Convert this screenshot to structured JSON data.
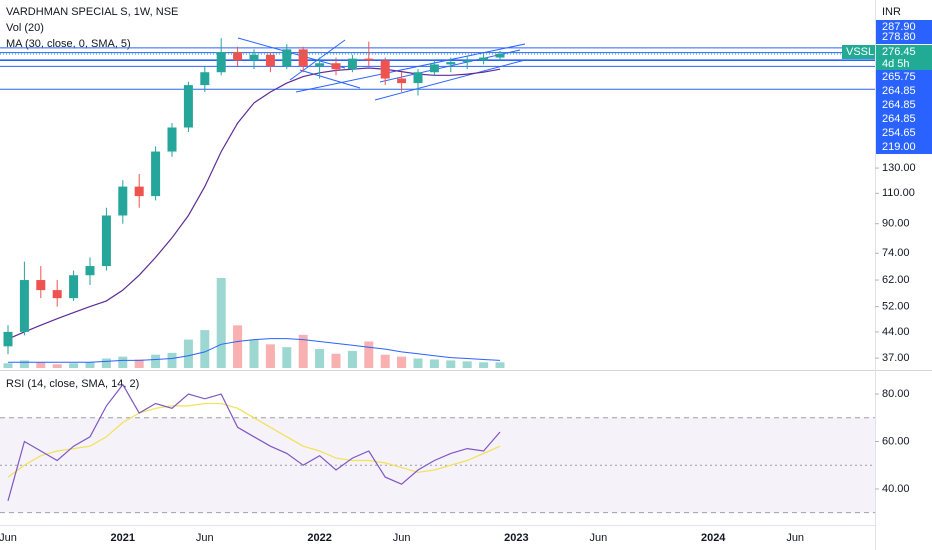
{
  "chart_data": [
    {
      "type": "candlestick",
      "title": "VARDHMAN SPECIAL S, 1W, NSE",
      "volume_title": "Vol (20)",
      "ma_title": "MA (30, close, 0, SMA, 5)",
      "currency": "INR",
      "log_scale": true,
      "ylim": [
        34.2,
        395
      ],
      "yticks": [
        {
          "value": 130,
          "label": "130.00"
        },
        {
          "value": 110,
          "label": "110.00"
        },
        {
          "value": 90,
          "label": "90.00"
        },
        {
          "value": 74,
          "label": "74.00"
        },
        {
          "value": 62,
          "label": "62.00"
        },
        {
          "value": 52,
          "label": "52.00"
        },
        {
          "value": 44,
          "label": "44.00"
        },
        {
          "value": 37,
          "label": "37.00"
        }
      ],
      "categories": [
        "Jun",
        null,
        null,
        null,
        null,
        null,
        null,
        "2021",
        null,
        null,
        null,
        null,
        "Jun",
        null,
        null,
        null,
        null,
        null,
        null,
        "2022",
        null,
        null,
        null,
        null,
        "Jun",
        null,
        null,
        null,
        null,
        null,
        null,
        "2023",
        null,
        null,
        null,
        null,
        "Jun",
        null,
        null,
        null,
        null,
        null,
        null,
        "2024",
        null,
        null,
        null,
        null,
        "Jun"
      ],
      "open": [
        40,
        44,
        62,
        58,
        55,
        64,
        68,
        95,
        115,
        108,
        145,
        170,
        225,
        245,
        280,
        265,
        275,
        255,
        285,
        255,
        260,
        250,
        268,
        265,
        235,
        228,
        245,
        258,
        262,
        265,
        270,
        null,
        null,
        null,
        null,
        null,
        null,
        null,
        null,
        null,
        null,
        null,
        null,
        null,
        null,
        null,
        null,
        null,
        null
      ],
      "high": [
        46,
        70,
        68,
        62,
        66,
        72,
        100,
        120,
        125,
        150,
        175,
        230,
        255,
        307,
        290,
        285,
        280,
        295,
        290,
        270,
        270,
        275,
        300,
        270,
        245,
        250,
        265,
        270,
        272,
        278,
        282,
        null,
        null,
        null,
        null,
        null,
        null,
        null,
        null,
        null,
        null,
        null,
        null,
        null,
        null,
        null,
        null,
        null,
        null
      ],
      "low": [
        38,
        43,
        55,
        52,
        54,
        60,
        66,
        90,
        100,
        105,
        140,
        165,
        215,
        240,
        255,
        250,
        245,
        250,
        245,
        235,
        240,
        245,
        255,
        225,
        215,
        210,
        240,
        245,
        250,
        258,
        265,
        null,
        null,
        null,
        null,
        null,
        null,
        null,
        null,
        null,
        null,
        null,
        null,
        null,
        null,
        null,
        null,
        null,
        null
      ],
      "close": [
        44,
        62,
        58,
        55,
        64,
        68,
        95,
        115,
        108,
        145,
        170,
        225,
        245,
        280,
        265,
        275,
        255,
        285,
        255,
        260,
        250,
        268,
        265,
        235,
        228,
        245,
        258,
        262,
        265,
        270,
        276.45,
        null,
        null,
        null,
        null,
        null,
        null,
        null,
        null,
        null,
        null,
        null,
        null,
        null,
        null,
        null,
        null,
        null,
        null
      ],
      "ma": [
        42,
        44,
        46,
        48,
        50,
        52,
        54,
        58,
        64,
        72,
        82,
        95,
        115,
        145,
        175,
        200,
        215,
        228,
        238,
        244,
        248,
        250,
        252,
        250,
        246,
        242,
        240,
        240,
        242,
        245,
        250,
        null,
        null,
        null,
        null,
        null,
        null,
        null,
        null,
        null,
        null,
        null,
        null,
        null,
        null,
        null,
        null,
        null,
        null
      ],
      "volume": [
        5,
        8,
        6,
        4,
        5,
        6,
        10,
        12,
        9,
        14,
        16,
        30,
        40,
        95,
        45,
        30,
        25,
        22,
        35,
        20,
        15,
        18,
        28,
        14,
        12,
        10,
        9,
        8,
        7,
        6,
        6,
        null,
        null,
        null,
        null,
        null,
        null,
        null,
        null,
        null,
        null,
        null,
        null,
        null,
        null,
        null,
        null,
        null,
        null
      ],
      "volume_ma": [
        6,
        6,
        6,
        6,
        6,
        6,
        7,
        8,
        8,
        9,
        10,
        13,
        17,
        25,
        28,
        30,
        31,
        31,
        30,
        28,
        26,
        24,
        22,
        20,
        17,
        15,
        13,
        11,
        10,
        9,
        8,
        null,
        null,
        null,
        null,
        null,
        null,
        null,
        null,
        null,
        null,
        null,
        null,
        null,
        null,
        null,
        null,
        null,
        null
      ],
      "up_color": "#26a69a",
      "down_color": "#ef5350",
      "ma_color": "#5e2b97",
      "volume_ma_color": "#2962ff",
      "level_color": "#2962ff",
      "last_color": "#22ab94",
      "price_labels": [
        {
          "value": 287.9,
          "label": "287.90"
        },
        {
          "value": 278.8,
          "label": "278.80"
        },
        {
          "value": 265.75,
          "label": "265.75"
        },
        {
          "value": 264.85,
          "label": "264.85"
        },
        {
          "value": 264.85,
          "label": "264.85"
        },
        {
          "value": 264.85,
          "label": "264.85"
        },
        {
          "value": 254.65,
          "label": "254.65"
        },
        {
          "value": 219,
          "label": "219.00"
        }
      ],
      "last": {
        "symbol": "VSSL",
        "price": 276.45,
        "countdown": "4d 5h"
      }
    },
    {
      "type": "line",
      "title": "RSI (14, close, SMA, 14, 2)",
      "ylim": [
        24.8,
        89.3
      ],
      "yticks": [
        {
          "value": 80,
          "label": "80.00"
        },
        {
          "value": 60,
          "label": "60.00"
        },
        {
          "value": 40,
          "label": "40.00"
        }
      ],
      "bands": [
        70,
        50,
        30
      ],
      "band_color": "#7e57c2",
      "series": [
        {
          "name": "RSI",
          "color": "#7e57c2",
          "values": [
            35,
            60,
            56,
            52,
            58,
            62,
            75,
            84,
            72,
            76,
            74,
            80,
            78,
            80,
            66,
            62,
            58,
            55,
            50,
            54,
            48,
            53,
            56,
            45,
            42,
            48,
            52,
            55,
            57,
            56,
            64,
            null,
            null,
            null,
            null,
            null,
            null,
            null,
            null,
            null,
            null,
            null,
            null,
            null,
            null,
            null,
            null,
            null,
            null
          ]
        },
        {
          "name": "MA",
          "color": "#f2e255",
          "values": [
            45,
            50,
            54,
            56,
            57,
            58,
            62,
            68,
            72,
            74,
            75,
            75,
            76,
            76,
            74,
            70,
            66,
            62,
            58,
            56,
            53,
            52,
            52,
            51,
            49,
            47,
            48,
            50,
            52,
            55,
            58,
            null,
            null,
            null,
            null,
            null,
            null,
            null,
            null,
            null,
            null,
            null,
            null,
            null,
            null,
            null,
            null,
            null,
            null
          ]
        }
      ]
    }
  ]
}
